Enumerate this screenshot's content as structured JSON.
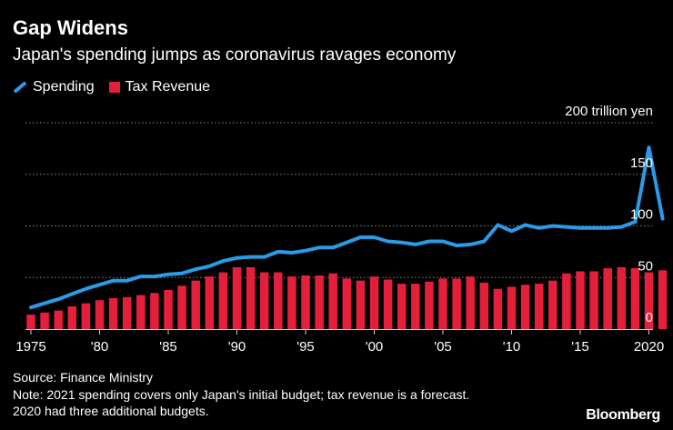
{
  "header": {
    "title": "Gap Widens",
    "subtitle": "Japan's spending jumps as coronavirus ravages economy"
  },
  "legend": {
    "spending_label": "Spending",
    "tax_label": "Tax Revenue"
  },
  "colors": {
    "spending": "#2b9be8",
    "tax": "#e41f3b",
    "grid": "#8a8a8a",
    "text": "#ffffff",
    "background": "#000000"
  },
  "chart_data": {
    "type": "bar",
    "title": "Gap Widens",
    "subtitle": "Japan's spending jumps as coronavirus ravages economy",
    "unit_label": "200 trillion yen",
    "xlabel": "",
    "ylabel": "",
    "ylim": [
      0,
      200
    ],
    "y_ticks": [
      {
        "value": 0,
        "label": "0"
      },
      {
        "value": 50,
        "label": "50"
      },
      {
        "value": 100,
        "label": "100"
      },
      {
        "value": 150,
        "label": "150"
      },
      {
        "value": 200,
        "label": "200 trillion yen"
      }
    ],
    "x_ticks": [
      {
        "year": 1975,
        "label": "1975"
      },
      {
        "year": 1980,
        "label": "'80"
      },
      {
        "year": 1985,
        "label": "'85"
      },
      {
        "year": 1990,
        "label": "'90"
      },
      {
        "year": 1995,
        "label": "'95"
      },
      {
        "year": 2000,
        "label": "'00"
      },
      {
        "year": 2005,
        "label": "'05"
      },
      {
        "year": 2010,
        "label": "'10"
      },
      {
        "year": 2015,
        "label": "'15"
      },
      {
        "year": 2020,
        "label": "2020"
      }
    ],
    "x": [
      1975,
      1976,
      1977,
      1978,
      1979,
      1980,
      1981,
      1982,
      1983,
      1984,
      1985,
      1986,
      1987,
      1988,
      1989,
      1990,
      1991,
      1992,
      1993,
      1994,
      1995,
      1996,
      1997,
      1998,
      1999,
      2000,
      2001,
      2002,
      2003,
      2004,
      2005,
      2006,
      2007,
      2008,
      2009,
      2010,
      2011,
      2012,
      2013,
      2014,
      2015,
      2016,
      2017,
      2018,
      2019,
      2020,
      2021
    ],
    "series": [
      {
        "name": "Spending",
        "kind": "line",
        "values": [
          21,
          25,
          29,
          34,
          39,
          43,
          47,
          47,
          51,
          51,
          53,
          54,
          58,
          61,
          66,
          69,
          70,
          70,
          75,
          74,
          76,
          79,
          79,
          84,
          89,
          89,
          85,
          84,
          82,
          85,
          85,
          81,
          82,
          85,
          101,
          95,
          101,
          98,
          100,
          99,
          98,
          98,
          98,
          99,
          104,
          176,
          107
        ]
      },
      {
        "name": "Tax Revenue",
        "kind": "bar",
        "values": [
          14,
          16,
          18,
          22,
          25,
          28,
          30,
          31,
          33,
          35,
          38,
          42,
          47,
          51,
          55,
          60,
          60,
          55,
          55,
          51,
          52,
          52,
          54,
          49,
          47,
          51,
          48,
          44,
          44,
          46,
          49,
          49,
          51,
          45,
          39,
          41,
          43,
          44,
          47,
          54,
          56,
          56,
          59,
          60,
          59,
          55,
          57
        ]
      }
    ]
  },
  "footer": {
    "source": "Source: Finance Ministry",
    "note_line1": "Note: 2021 spending covers only Japan's initial budget; tax revenue is a forecast.",
    "note_line2": "2020 had three additional budgets.",
    "brand": "Bloomberg"
  }
}
